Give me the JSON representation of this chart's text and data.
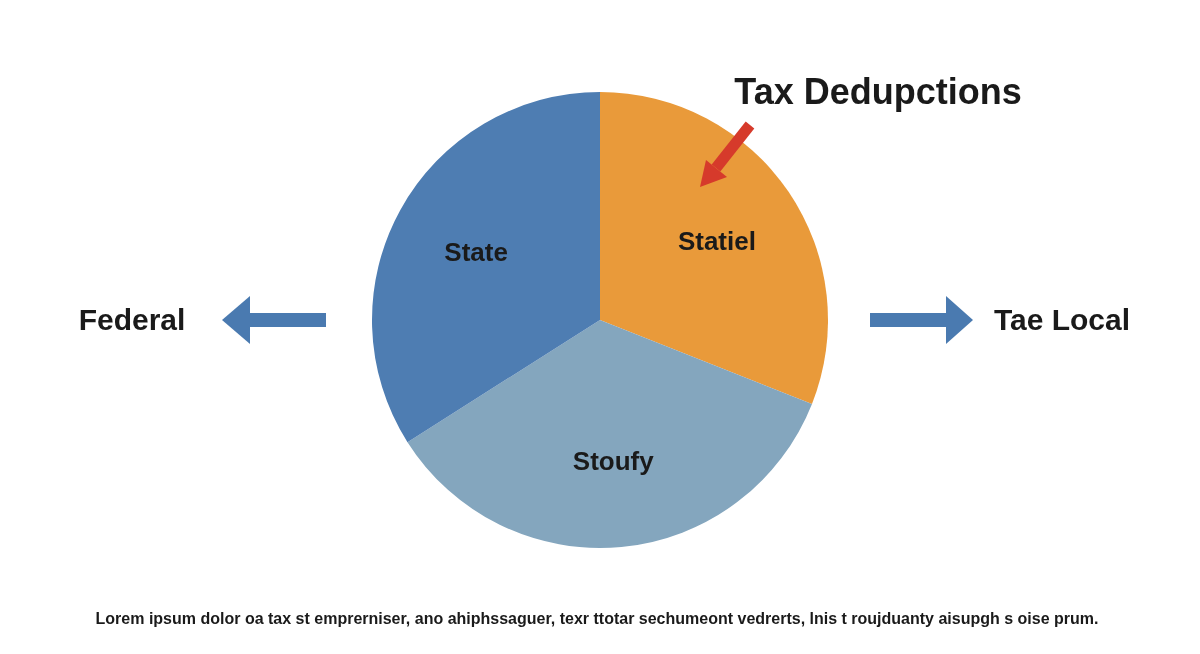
{
  "chart_data": {
    "type": "pie",
    "title": "Tax Dedupctions",
    "categories": [
      "Statiel",
      "Stoufy",
      "State"
    ],
    "values": [
      31,
      35,
      34
    ],
    "colors": [
      "#e99a3a",
      "#84a6be",
      "#4e7db2"
    ],
    "annotations": [
      "Federal",
      "Tae Local",
      "Lorem ipsum dolor oa tax st emprerniser, ano ahiphssaguer, texr ttotar sechumeont vedrerts, lnis t roujduanty aisupgh s oise prum."
    ]
  }
}
